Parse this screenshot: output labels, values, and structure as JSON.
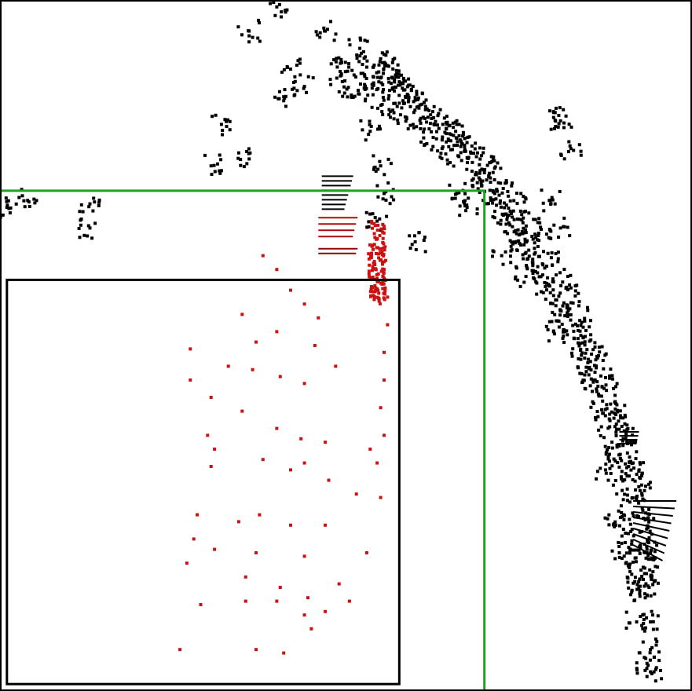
{
  "chart_data": {
    "type": "scatter",
    "title": "",
    "xlabel": "",
    "ylabel": "",
    "xlim": [
      0,
      100
    ],
    "ylim": [
      0,
      100
    ],
    "grid": false,
    "legend": "none",
    "colors": {
      "outer_points": "#000000",
      "inner_points": "#cc1111",
      "green_box": "#22a022",
      "black_box": "#000000",
      "frame": "#000000"
    },
    "regions": [
      {
        "name": "green-box",
        "x_range": [
          0,
          70.0
        ],
        "y_range": [
          0,
          72.4
        ]
      },
      {
        "name": "black-box",
        "x_range": [
          1.0,
          57.7
        ],
        "y_range": [
          1.0,
          59.5
        ]
      }
    ],
    "series": [
      {
        "color": "#000000",
        "description_points": [
          [
            55.0,
            91.5
          ],
          [
            56.0,
            90.5
          ],
          [
            57.0,
            88.5
          ],
          [
            58.5,
            87.0
          ],
          [
            60.0,
            85.5
          ],
          [
            62.0,
            84.0
          ],
          [
            64.0,
            82.0
          ],
          [
            66.0,
            80.0
          ],
          [
            68.0,
            78.0
          ],
          [
            70.0,
            75.0
          ],
          [
            71.5,
            72.0
          ],
          [
            73.0,
            69.0
          ],
          [
            75.0,
            66.0
          ],
          [
            77.0,
            62.0
          ],
          [
            79.0,
            59.0
          ],
          [
            81.0,
            55.0
          ],
          [
            83.0,
            51.0
          ],
          [
            85.0,
            48.0
          ],
          [
            87.0,
            44.0
          ],
          [
            89.0,
            40.0
          ],
          [
            90.5,
            37.0
          ],
          [
            91.5,
            33.0
          ],
          [
            92.5,
            29.0
          ],
          [
            93.0,
            25.0
          ],
          [
            93.5,
            20.0
          ],
          [
            93.8,
            15.0
          ],
          [
            94.0,
            10.0
          ],
          [
            94.0,
            6.0
          ],
          [
            94.2,
            2.5
          ],
          [
            36.0,
            95.5
          ],
          [
            40.0,
            99.0
          ],
          [
            47.0,
            95.5
          ],
          [
            42.0,
            90.0
          ],
          [
            32.0,
            82.0
          ],
          [
            30.5,
            76.0
          ],
          [
            36.0,
            77.0
          ],
          [
            41.0,
            86.0
          ],
          [
            44.0,
            87.5
          ],
          [
            52.0,
            93.0
          ],
          [
            54.0,
            88.0
          ],
          [
            53.5,
            81.0
          ],
          [
            55.0,
            76.0
          ],
          [
            55.5,
            72.0
          ],
          [
            54.5,
            68.0
          ],
          [
            81.0,
            82.5
          ],
          [
            80.0,
            83.0
          ],
          [
            82.5,
            78.5
          ],
          [
            79.5,
            71.0
          ],
          [
            81.0,
            67.0
          ],
          [
            1.0,
            70.0
          ],
          [
            4.0,
            71.0
          ],
          [
            13.0,
            70.5
          ],
          [
            13.0,
            67.0
          ],
          [
            60.0,
            65.0
          ],
          [
            66.0,
            72.0
          ],
          [
            67.5,
            70.0
          ],
          [
            72.5,
            63.0
          ],
          [
            76.0,
            60.0
          ],
          [
            80.0,
            52.0
          ],
          [
            87.5,
            32.0
          ],
          [
            89.5,
            20.0
          ],
          [
            92.0,
            10.0
          ],
          [
            93.5,
            4.0
          ],
          [
            89.0,
            24.0
          ]
        ]
      },
      {
        "color": "#cc1111",
        "description_points": [
          [
            55.0,
            64.0
          ],
          [
            55.5,
            61.0
          ],
          [
            56.0,
            57.0
          ],
          [
            56.0,
            53.0
          ],
          [
            55.5,
            49.0
          ],
          [
            55.5,
            45.0
          ],
          [
            55.0,
            41.0
          ],
          [
            55.5,
            37.0
          ],
          [
            54.5,
            33.0
          ],
          [
            55.0,
            28.0
          ],
          [
            38.0,
            63.0
          ],
          [
            40.0,
            61.0
          ],
          [
            42.0,
            58.0
          ],
          [
            44.0,
            56.0
          ],
          [
            46.0,
            54.0
          ],
          [
            35.0,
            54.5
          ],
          [
            37.0,
            50.5
          ],
          [
            40.0,
            52.0
          ],
          [
            45.5,
            50.0
          ],
          [
            48.5,
            47.0
          ],
          [
            27.5,
            49.5
          ],
          [
            33.0,
            47.0
          ],
          [
            36.5,
            46.5
          ],
          [
            40.5,
            45.5
          ],
          [
            44.0,
            44.5
          ],
          [
            27.5,
            45.0
          ],
          [
            30.5,
            42.5
          ],
          [
            35.0,
            40.5
          ],
          [
            40.0,
            38.0
          ],
          [
            43.5,
            36.5
          ],
          [
            30.0,
            37.0
          ],
          [
            31.0,
            35.0
          ],
          [
            38.0,
            33.5
          ],
          [
            44.0,
            33.0
          ],
          [
            47.0,
            36.0
          ],
          [
            30.5,
            32.5
          ],
          [
            42.0,
            32.0
          ],
          [
            47.5,
            30.5
          ],
          [
            51.5,
            28.5
          ],
          [
            53.5,
            35.0
          ],
          [
            28.5,
            25.5
          ],
          [
            34.5,
            24.5
          ],
          [
            37.5,
            25.5
          ],
          [
            42.0,
            24.0
          ],
          [
            47.0,
            24.0
          ],
          [
            28.0,
            22.0
          ],
          [
            31.0,
            20.5
          ],
          [
            37.0,
            20.0
          ],
          [
            44.0,
            19.5
          ],
          [
            53.0,
            20.0
          ],
          [
            27.0,
            18.5
          ],
          [
            35.5,
            16.5
          ],
          [
            40.5,
            15.0
          ],
          [
            44.5,
            13.5
          ],
          [
            49.0,
            15.5
          ],
          [
            29.0,
            12.5
          ],
          [
            35.5,
            13.0
          ],
          [
            40.0,
            13.0
          ],
          [
            44.0,
            11.0
          ],
          [
            47.0,
            11.5
          ],
          [
            26.0,
            6.0
          ],
          [
            37.0,
            6.0
          ],
          [
            41.0,
            5.5
          ],
          [
            45.0,
            9.0
          ],
          [
            50.5,
            13.0
          ]
        ]
      }
    ]
  }
}
